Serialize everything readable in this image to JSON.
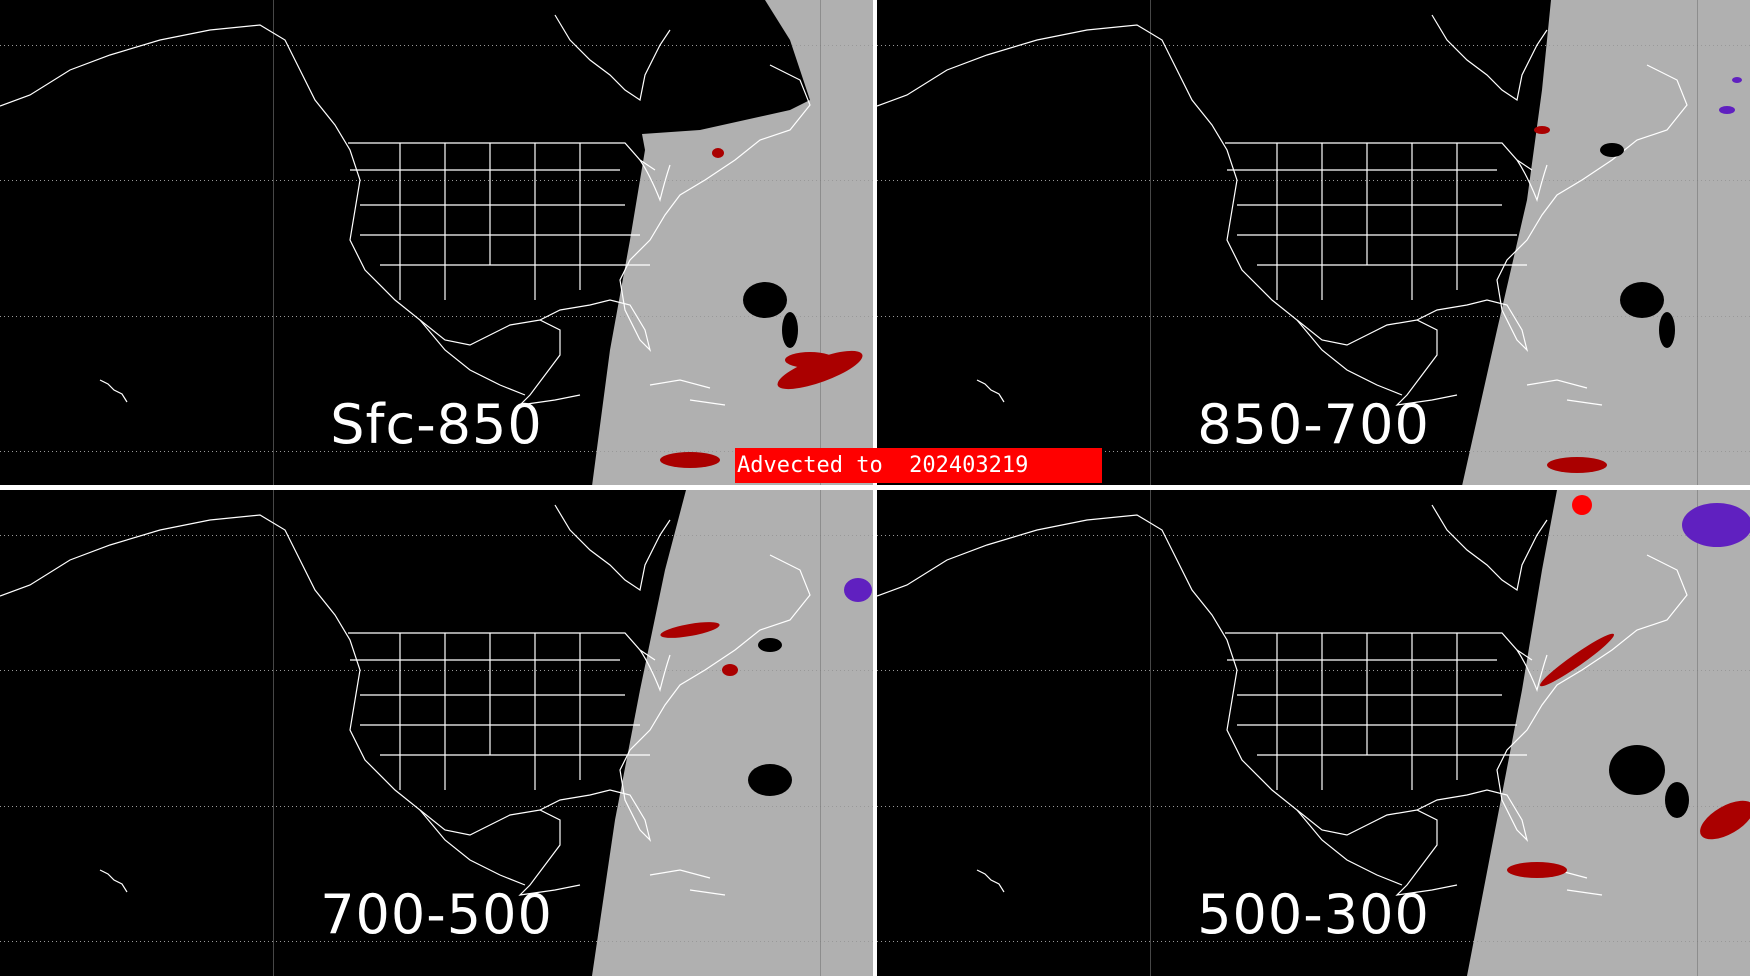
{
  "panels": [
    {
      "label": "Sfc-850"
    },
    {
      "label": "850-700"
    },
    {
      "label": "700-500"
    },
    {
      "label": "500-300"
    }
  ],
  "banner": {
    "text": "Advected to  202403219"
  },
  "colors": {
    "background": "#000000",
    "daylight_gray": "#b0b0b0",
    "coastline": "#ffffff",
    "feature_red": "#aa0000",
    "feature_bright_red": "#ff0000",
    "feature_purple": "#6020c0",
    "banner": "#ff0000"
  }
}
